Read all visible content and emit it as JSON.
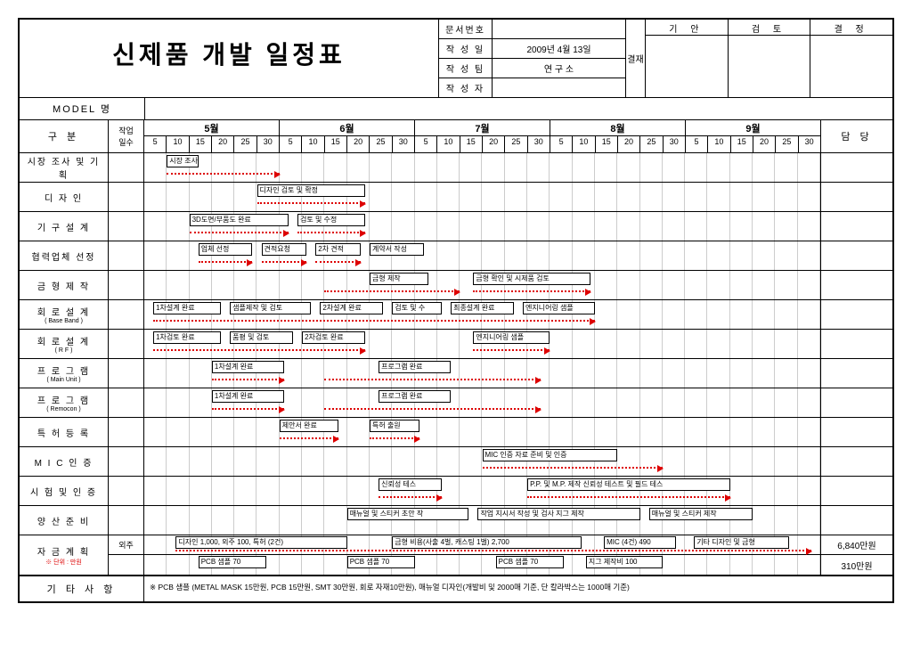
{
  "title": "신제품 개발 일정표",
  "meta": {
    "docnum_label": "문서번호",
    "docnum": "",
    "date_label": "작 성 일",
    "date": "2009년 4월 13일",
    "team_label": "작 성 팀",
    "team": "연 구 소",
    "author_label": "작 성 자",
    "author": ""
  },
  "approval": {
    "vert": "결재",
    "cols": [
      "기 안",
      "검 토",
      "결 정"
    ]
  },
  "model_label": "MODEL 명",
  "head": {
    "category": "구 분",
    "days": "작업\n일수",
    "owner": "담 당",
    "months": [
      "5월",
      "6월",
      "7월",
      "8월",
      "9월"
    ],
    "ticks": [
      "5",
      "10",
      "15",
      "20",
      "25",
      "30",
      "5",
      "10",
      "15",
      "20",
      "25",
      "30",
      "5",
      "10",
      "15",
      "20",
      "25",
      "30",
      "5",
      "10",
      "15",
      "20",
      "25",
      "30",
      "5",
      "10",
      "15",
      "20",
      "25",
      "30"
    ]
  },
  "rows": [
    {
      "label": "시장 조사 및 기획",
      "tasks": [
        {
          "l": "시장 조사",
          "s": 5,
          "e": 12
        }
      ],
      "arrows": [
        {
          "s": 5,
          "e": 30
        }
      ]
    },
    {
      "label": "디  자  인",
      "tasks": [
        {
          "l": "디자인 검토 및 확정",
          "s": 25,
          "e": 49
        }
      ],
      "arrows": [
        {
          "s": 25,
          "e": 49
        }
      ]
    },
    {
      "label": "기 구 설 계",
      "tasks": [
        {
          "l": "3D도면/부품도 완료",
          "s": 10,
          "e": 32
        },
        {
          "l": "검토 및 수정",
          "s": 34,
          "e": 49
        }
      ],
      "arrows": [
        {
          "s": 10,
          "e": 32
        },
        {
          "s": 34,
          "e": 49
        }
      ]
    },
    {
      "label": "협력업체 선정",
      "tasks": [
        {
          "l": "업체 선정",
          "s": 12,
          "e": 24
        },
        {
          "l": "견적요청",
          "s": 26,
          "e": 36
        },
        {
          "l": "2차 견적",
          "s": 38,
          "e": 48
        },
        {
          "l": "계약서 작성",
          "s": 50,
          "e": 62
        }
      ],
      "arrows": [
        {
          "s": 12,
          "e": 24
        },
        {
          "s": 26,
          "e": 36
        },
        {
          "s": 38,
          "e": 48
        }
      ]
    },
    {
      "label": "금 형 제 작",
      "tasks": [
        {
          "l": "금형 제작",
          "s": 50,
          "e": 63
        },
        {
          "l": "금형 확인 및 시제품 검토",
          "s": 73,
          "e": 99
        }
      ],
      "arrows": [
        {
          "s": 40,
          "e": 70
        },
        {
          "s": 73,
          "e": 99
        }
      ]
    },
    {
      "label": "회 로 설 계",
      "sub": "( Base Band )",
      "tasks": [
        {
          "l": "1차설계 완료",
          "s": 2,
          "e": 17
        },
        {
          "l": "샘플제작 및 검토",
          "s": 19,
          "e": 37
        },
        {
          "l": "2차설계 완료",
          "s": 39,
          "e": 53
        },
        {
          "l": "검토 및 수",
          "s": 55,
          "e": 66
        },
        {
          "l": "최종설계 완료",
          "s": 68,
          "e": 82
        },
        {
          "l": "엔지니어링 샘플",
          "s": 84,
          "e": 100
        }
      ],
      "arrows": [
        {
          "s": 2,
          "e": 100
        }
      ]
    },
    {
      "label": "회 로 설 계",
      "sub": "(  R      F  )",
      "tasks": [
        {
          "l": "1차검토 완료",
          "s": 2,
          "e": 17
        },
        {
          "l": "품평 및 검토",
          "s": 19,
          "e": 33
        },
        {
          "l": "2차검토 완료",
          "s": 35,
          "e": 49
        },
        {
          "l": "엔지니어링 샘플",
          "s": 73,
          "e": 90
        }
      ],
      "arrows": [
        {
          "s": 2,
          "e": 49
        },
        {
          "s": 73,
          "e": 90
        }
      ]
    },
    {
      "label": "프 로 그 램",
      "sub": "( Main Unit )",
      "tasks": [
        {
          "l": "1차설계 완료",
          "s": 15,
          "e": 31
        },
        {
          "l": "프로그램 완료",
          "s": 52,
          "e": 68
        }
      ],
      "arrows": [
        {
          "s": 15,
          "e": 31
        },
        {
          "s": 40,
          "e": 88
        }
      ]
    },
    {
      "label": "프 로 그 램",
      "sub": "( Remocon )",
      "tasks": [
        {
          "l": "1차설계 완료",
          "s": 15,
          "e": 31
        },
        {
          "l": "프로그램 완료",
          "s": 52,
          "e": 68
        }
      ],
      "arrows": [
        {
          "s": 15,
          "e": 31
        },
        {
          "s": 40,
          "e": 88
        }
      ]
    },
    {
      "label": "특 허 등 록",
      "tasks": [
        {
          "l": "제안서 완료",
          "s": 30,
          "e": 43
        },
        {
          "l": "특허 출원",
          "s": 50,
          "e": 61
        }
      ],
      "arrows": [
        {
          "s": 30,
          "e": 43
        },
        {
          "s": 50,
          "e": 61
        }
      ]
    },
    {
      "label": "M I C   인 증",
      "tasks": [
        {
          "l": "MIC 인증 자료 준비 및 인증",
          "s": 75,
          "e": 105
        }
      ],
      "arrows": [
        {
          "s": 75,
          "e": 115
        }
      ]
    },
    {
      "label": "시 험 및 인 증",
      "tasks": [
        {
          "l": "신뢰성 테스",
          "s": 52,
          "e": 66
        },
        {
          "l": "P.P. 및 M.P. 제작 신뢰성 테스트 및 필드 테스",
          "s": 85,
          "e": 130
        }
      ],
      "arrows": [
        {
          "s": 52,
          "e": 66
        },
        {
          "s": 85,
          "e": 130
        }
      ]
    },
    {
      "label": "양 산 준 비",
      "tasks": [
        {
          "l": "매뉴얼 및 스티커 초안 작",
          "s": 45,
          "e": 72
        },
        {
          "l": "작업 지시서 작성 및 검사 지그 제작",
          "s": 74,
          "e": 110
        },
        {
          "l": "매뉴얼 및 스티커 제작",
          "s": 112,
          "e": 135
        }
      ],
      "arrows": []
    },
    {
      "label": "자 금 계 획",
      "note": "※ 단위 : 만원",
      "double": true,
      "top_label": "외주",
      "top_tasks": [
        {
          "l": "디자인 1,000, 외주 100, 특허 (2건)",
          "s": 7,
          "e": 45
        },
        {
          "l": "금형 비용(사출 4벌, 캐스팅 1벌) 2,700",
          "s": 55,
          "e": 97
        },
        {
          "l": "MIC (4건) 490",
          "s": 102,
          "e": 118
        },
        {
          "l": "기타 디자인 및 금형",
          "s": 122,
          "e": 143
        }
      ],
      "top_arrows": [
        {
          "s": 7,
          "e": 148
        }
      ],
      "top_owner": "6,840만원",
      "bot_tasks": [
        {
          "l": "PCB 샘플 70",
          "s": 12,
          "e": 27
        },
        {
          "l": "PCB 샘플 70",
          "s": 45,
          "e": 60
        },
        {
          "l": "PCB 샘플 70",
          "s": 78,
          "e": 93
        },
        {
          "l": "지그 제작비 100",
          "s": 98,
          "e": 115
        }
      ],
      "bot_arrows": [],
      "bot_owner": "310만원"
    }
  ],
  "footer": {
    "label": "기 타 사 항",
    "text": "※ PCB 샘플 (METAL MASK 15만원, PCB 15만원, SMT 30만원, 회로 자재10만원), 매뉴얼 디자인(개발비 및 2000매 기준, 단 칼라박스는 1000매 기준)"
  },
  "timeline_max": 150
}
